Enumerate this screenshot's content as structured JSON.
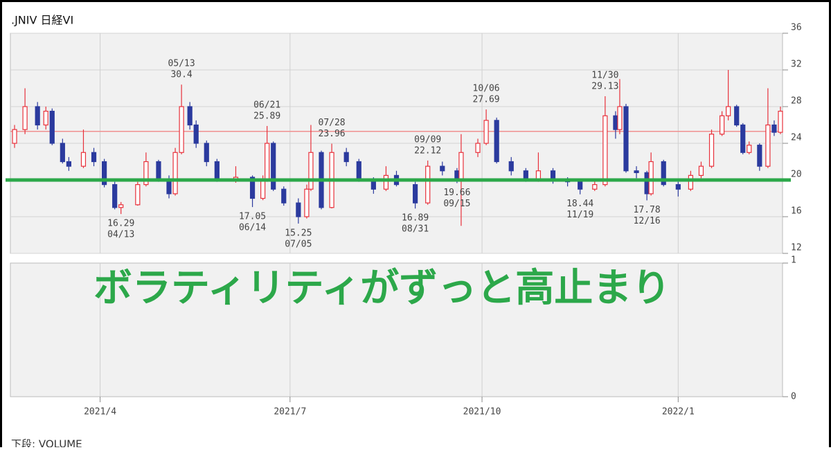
{
  "chart_data": {
    "type": "candlestick",
    "title": ".JNIV 日経VI",
    "x": [
      2,
      7,
      13,
      17,
      20,
      25,
      28,
      35,
      40,
      45,
      50,
      53,
      61,
      65,
      71,
      76,
      79,
      82,
      86,
      89,
      94,
      99,
      108,
      116,
      121,
      123,
      126,
      131,
      138,
      142,
      144,
      149,
      154,
      161,
      167,
      174,
      180,
      185,
      194,
      200,
      207,
      214,
      216,
      224,
      228,
      233,
      240,
      247,
      253,
      260,
      267,
      273,
      280,
      285,
      290,
      292,
      295,
      300,
      305,
      307,
      313,
      320,
      326,
      331,
      336,
      341,
      344,
      348,
      351,
      354,
      359,
      363,
      366,
      369
    ],
    "open": [
      24,
      25.5,
      28,
      26,
      27.5,
      24,
      22,
      21.5,
      23,
      22,
      19.5,
      17,
      17.3,
      19.5,
      22,
      20,
      18.5,
      23,
      28,
      26,
      24,
      22,
      20,
      20.3,
      18,
      20,
      24,
      19,
      17.5,
      16,
      19,
      23,
      17,
      23,
      22,
      20,
      19,
      20.5,
      19.5,
      17.5,
      21.5,
      21,
      20,
      23,
      24,
      26.5,
      22,
      21,
      20,
      21,
      20,
      19.8,
      19,
      19.5,
      27,
      25.5,
      28,
      21,
      20.8,
      18.5,
      22,
      19.5,
      19,
      20.5,
      21.5,
      25,
      27,
      28,
      26,
      23,
      23.8,
      21.5,
      26,
      25.2
    ],
    "high": [
      26,
      30,
      28.5,
      28,
      27.8,
      24.5,
      22.5,
      25.5,
      23.5,
      22.3,
      19.8,
      17.6,
      19.8,
      23,
      22.2,
      20.5,
      23.5,
      30.4,
      28.5,
      26.5,
      24.3,
      22.3,
      21.5,
      20.5,
      20.5,
      25.89,
      24.2,
      19.3,
      18,
      19.5,
      26,
      23.2,
      23.96,
      23.5,
      22.3,
      20.3,
      21.5,
      21,
      19.8,
      22.12,
      22,
      21.3,
      25,
      24.5,
      27.69,
      26.8,
      22.5,
      21.3,
      23,
      21.3,
      20.3,
      20,
      20,
      29.13,
      27.5,
      31,
      28.3,
      21.5,
      21,
      23,
      22.2,
      19.8,
      21,
      22,
      25.5,
      27.5,
      32,
      28.2,
      26.2,
      24.2,
      24,
      30,
      26.5,
      28
    ],
    "low": [
      23.5,
      25,
      25.5,
      25.5,
      23.8,
      21.8,
      21,
      21.3,
      21.5,
      19.2,
      16.8,
      16.29,
      17.2,
      19.3,
      19.8,
      18,
      18.3,
      22.8,
      25.5,
      23.5,
      21.5,
      19.8,
      19.7,
      17.05,
      17.8,
      19.8,
      18.8,
      17.2,
      15.25,
      15.8,
      18.8,
      16.8,
      16.9,
      21.5,
      19.8,
      18.5,
      18.8,
      19.3,
      16.89,
      17.3,
      20.5,
      19.66,
      15,
      22.5,
      23.8,
      21.8,
      20.5,
      19.8,
      19.8,
      19.6,
      19.3,
      18.44,
      18.8,
      19.3,
      24.5,
      25,
      20.8,
      20.2,
      17.78,
      18.3,
      19.3,
      18.2,
      18.8,
      20.2,
      21.3,
      24.8,
      26.5,
      25.8,
      22.8,
      22.8,
      21,
      21.3,
      24.8,
      25
    ],
    "close": [
      25.5,
      28,
      26,
      27.5,
      24,
      22,
      21.5,
      23,
      22,
      19.5,
      17,
      17.3,
      19.5,
      22,
      20,
      18.5,
      23,
      28,
      26,
      24,
      22,
      20,
      20.3,
      18,
      20,
      24,
      19,
      17.5,
      16,
      19,
      23,
      17,
      23,
      22,
      20,
      19,
      20.5,
      19.5,
      17.5,
      21.5,
      21,
      20,
      23,
      24,
      26.5,
      22,
      21,
      20,
      21,
      20,
      19.8,
      19,
      19.5,
      27,
      25.5,
      28,
      21,
      20.8,
      18.5,
      22,
      19.5,
      19,
      20.5,
      21.5,
      25,
      27,
      28,
      26,
      23,
      23.8,
      21.5,
      26,
      25.2,
      27.5
    ],
    "up_color": "#e8303a",
    "down_color": "#2b3a9e",
    "xlim": [
      0,
      370
    ],
    "xticks": [
      {
        "value": 43,
        "label": "2021/4"
      },
      {
        "value": 134,
        "label": "2021/7"
      },
      {
        "value": 226,
        "label": "2021/10"
      },
      {
        "value": 320,
        "label": "2022/1"
      }
    ],
    "ylim": [
      12,
      36
    ],
    "yticks": [
      12,
      16,
      20,
      24,
      28,
      32,
      36
    ],
    "grid": true,
    "reference_line": {
      "value": 25.3,
      "color": "#f09090"
    },
    "highlight_line": {
      "value": 20,
      "color": "#2ca84a"
    },
    "annotations": [
      {
        "date": "04/13",
        "value": 16.29,
        "position": "below"
      },
      {
        "date": "05/13",
        "value": 30.4,
        "position": "above"
      },
      {
        "date": "06/14",
        "value": 17.05,
        "position": "below"
      },
      {
        "date": "06/21",
        "value": 25.89,
        "position": "above"
      },
      {
        "date": "07/05",
        "value": 15.25,
        "position": "below"
      },
      {
        "date": "07/28",
        "value": 23.96,
        "position": "above"
      },
      {
        "date": "08/31",
        "value": 16.89,
        "position": "below"
      },
      {
        "date": "09/09",
        "value": 22.12,
        "position": "above"
      },
      {
        "date": "09/15",
        "value": 19.66,
        "position": "below"
      },
      {
        "date": "10/06",
        "value": 27.69,
        "position": "above"
      },
      {
        "date": "11/19",
        "value": 18.44,
        "position": "below"
      },
      {
        "date": "11/30",
        "value": 29.13,
        "position": "above"
      },
      {
        "date": "12/16",
        "value": 17.78,
        "position": "below"
      }
    ],
    "lower_panel": {
      "ylim": [
        0,
        1
      ],
      "yticks": [
        0,
        1
      ]
    },
    "overlay_text": "ボラティリティがずっと高止まり",
    "footer": "下段: VOLUME"
  }
}
